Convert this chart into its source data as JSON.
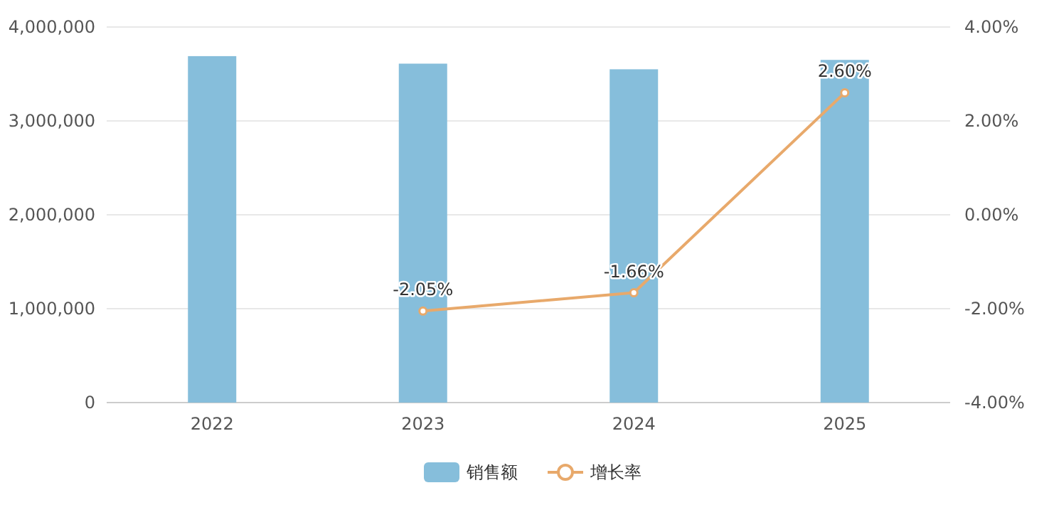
{
  "chart_data": {
    "type": "bar",
    "categories": [
      "2022",
      "2023",
      "2024",
      "2025"
    ],
    "series": [
      {
        "name": "销售额",
        "color": "#86bedb",
        "values": [
          3690000,
          3610000,
          3550000,
          3650000
        ]
      },
      {
        "name": "增长率",
        "type": "line",
        "axis": "y2",
        "color": "#e8a96b",
        "marker": "circle",
        "values": [
          null,
          -2.05,
          -1.66,
          2.6
        ],
        "value_labels": [
          null,
          "-2.05%",
          "-1.66%",
          "2.60%"
        ]
      }
    ],
    "ylim": [
      0,
      4000000
    ],
    "yticks": [
      0,
      {
        "value": 1000000,
        "label": "1,000,000"
      },
      {
        "value": 2000000,
        "label": "2,000,000"
      },
      {
        "value": 3000000,
        "label": "3,000,000"
      },
      {
        "value": 4000000,
        "label": "4,000,000"
      }
    ],
    "y2lim": [
      -4,
      4
    ],
    "y2ticks": [
      {
        "value": -4,
        "label": "-4.00%"
      },
      {
        "value": -2,
        "label": "-2.00%"
      },
      {
        "value": 0,
        "label": "0.00%"
      },
      {
        "value": 2,
        "label": "2.00%"
      },
      {
        "value": 4,
        "label": "4.00%"
      }
    ],
    "grid": "y",
    "legend": "bottom"
  }
}
